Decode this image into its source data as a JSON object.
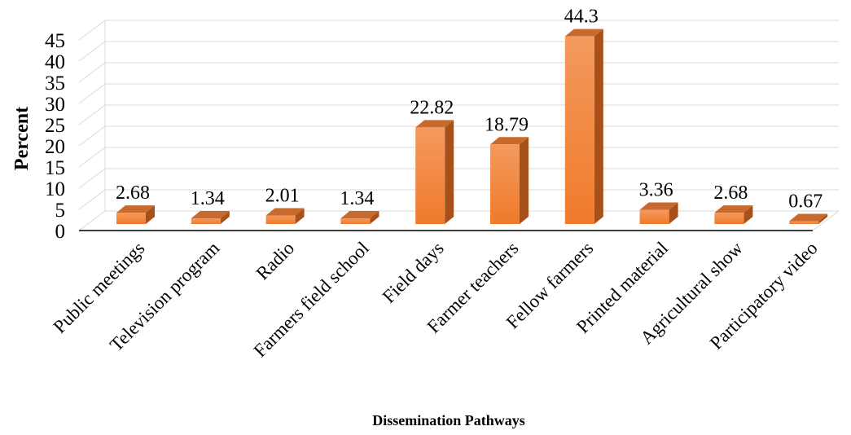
{
  "chart_data": {
    "type": "bar",
    "style": "3d-column",
    "categories": [
      "Public meetings",
      "Television program",
      "Radio",
      "Farmers field school",
      "Field days",
      "Farmer teachers",
      "Fellow farmers",
      "Printed material",
      "Agricultural show",
      "Participatory video"
    ],
    "values": [
      2.68,
      1.34,
      2.01,
      1.34,
      22.82,
      18.79,
      44.3,
      3.36,
      2.68,
      0.67
    ],
    "value_labels": [
      "2.68",
      "1.34",
      "2.01",
      "1.34",
      "22.82",
      "18.79",
      "44.3",
      "3.36",
      "2.68",
      "0.67"
    ],
    "ylabel": "Percent",
    "xlabel": "Dissemination Pathways",
    "ylim": [
      0,
      45
    ],
    "yticks": [
      0,
      5,
      10,
      15,
      20,
      25,
      30,
      35,
      40,
      45
    ],
    "grid": true,
    "legend": "none",
    "colors": {
      "bar_front": "#F07A2A",
      "bar_front_light": "#F39A5E",
      "bar_side": "#A8501A",
      "bar_top": "#C8692E",
      "grid": "#D9D9D9",
      "axis": "#000000"
    }
  }
}
